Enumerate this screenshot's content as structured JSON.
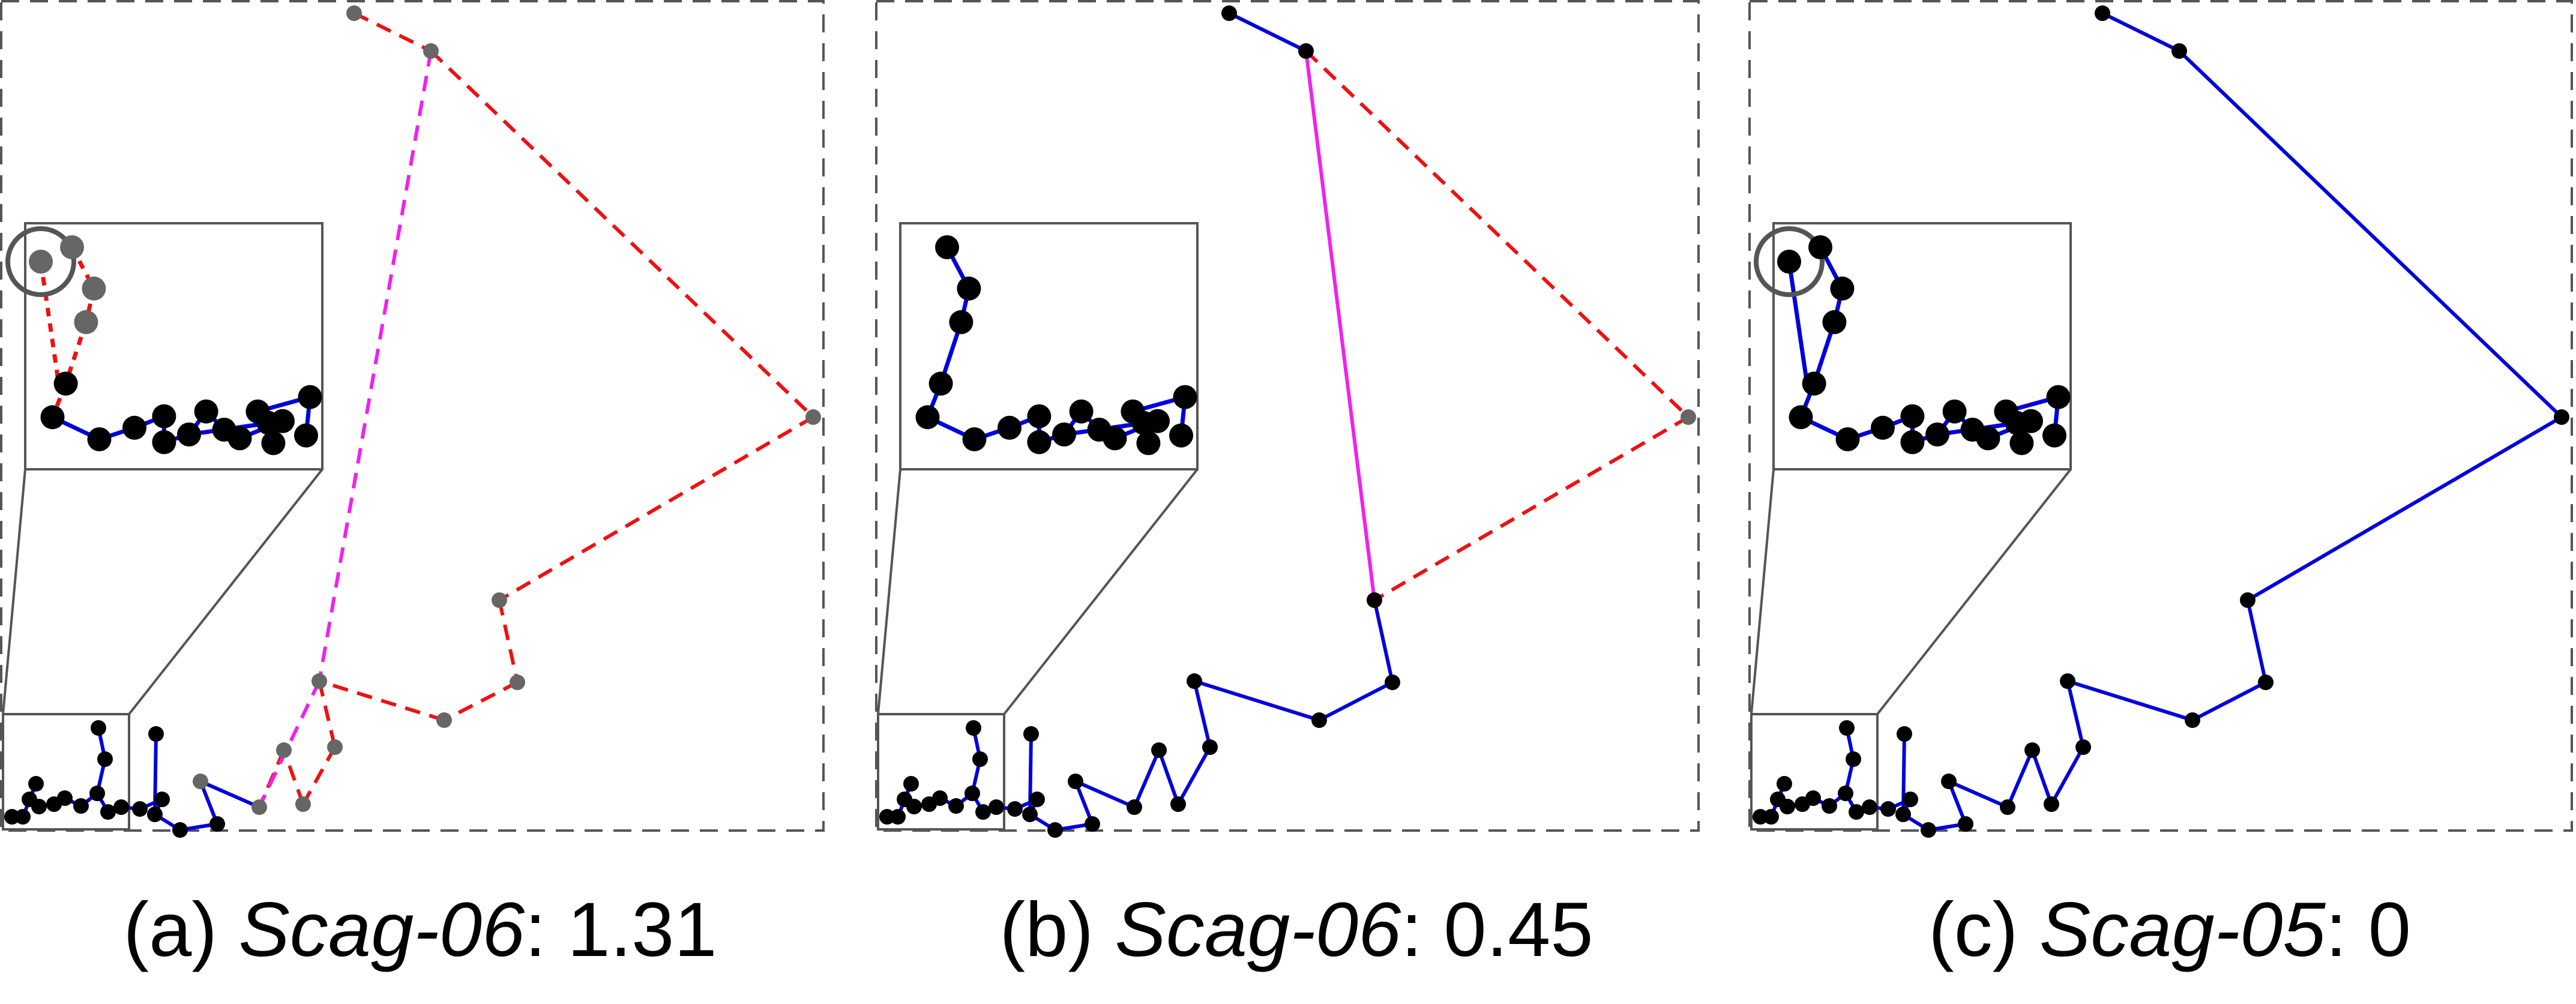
{
  "colors": {
    "frame": "#555555",
    "mst_edge": "#0000dd",
    "removed_edge": "#ee1111",
    "long_edge": "#ee22ee",
    "node_dark": "#000000",
    "node_gray": "#666666"
  },
  "panels": [
    {
      "id": "a",
      "caption": {
        "prefix": "(a) ",
        "name": "Scag-06",
        "value": ": 1.31"
      },
      "style": "dashed-edges-gray-nodes",
      "highlighted_point_circled": true
    },
    {
      "id": "b",
      "caption": {
        "prefix": "(b) ",
        "name": "Scag-06",
        "value": ": 0.45"
      },
      "style": "mixed-solid-dashed",
      "highlighted_point_circled": false
    },
    {
      "id": "c",
      "caption": {
        "prefix": "(c) ",
        "name": "Scag-05",
        "value": ": 0"
      },
      "style": "solid-mst",
      "highlighted_point_circled": true
    }
  ]
}
